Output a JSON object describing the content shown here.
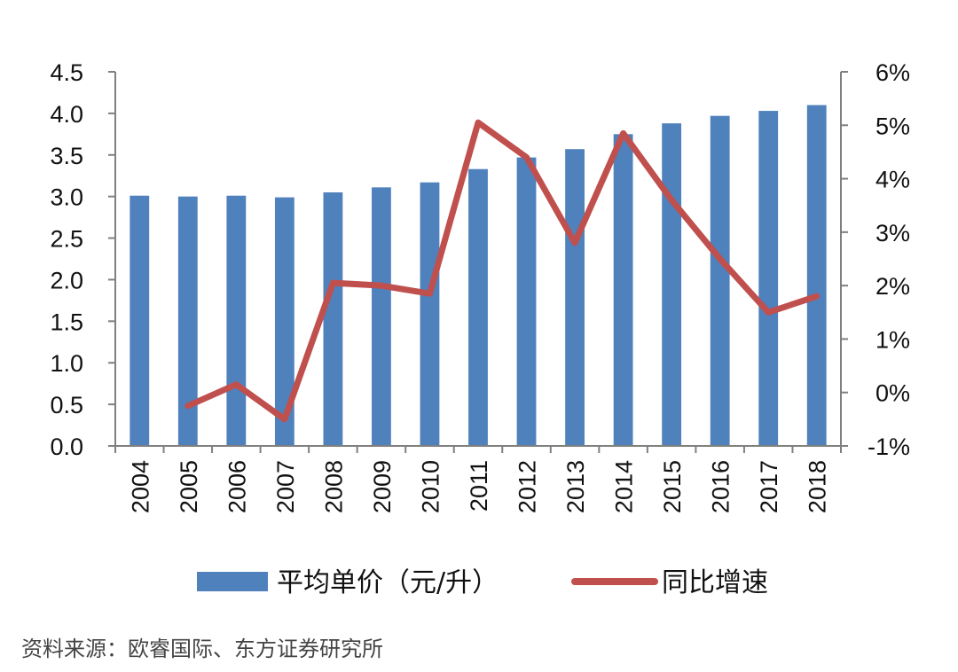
{
  "chart_data": {
    "type": "bar",
    "categories": [
      "2004",
      "2005",
      "2006",
      "2007",
      "2008",
      "2009",
      "2010",
      "2011",
      "2012",
      "2013",
      "2014",
      "2015",
      "2016",
      "2017",
      "2018"
    ],
    "series": [
      {
        "name": "平均单价（元/升）",
        "axis": "left",
        "chart_type": "bar",
        "values": [
          3.01,
          3.0,
          3.01,
          2.99,
          3.05,
          3.11,
          3.17,
          3.33,
          3.47,
          3.57,
          3.75,
          3.88,
          3.97,
          4.03,
          4.1
        ]
      },
      {
        "name": "同比增速",
        "axis": "right",
        "chart_type": "line",
        "unit": "%",
        "values": [
          null,
          -0.25,
          0.15,
          -0.5,
          2.05,
          2.0,
          1.85,
          5.05,
          4.4,
          2.8,
          4.85,
          3.6,
          2.5,
          1.5,
          1.8
        ]
      }
    ],
    "y_left": {
      "ylim": [
        0,
        4.5
      ],
      "ticks": [
        "0.0",
        "0.5",
        "1.0",
        "1.5",
        "2.0",
        "2.5",
        "3.0",
        "3.5",
        "4.0",
        "4.5"
      ]
    },
    "y_right": {
      "ylim": [
        -1,
        6
      ],
      "ticks": [
        "-1%",
        "0%",
        "1%",
        "2%",
        "3%",
        "4%",
        "5%",
        "6%"
      ]
    },
    "grid": false,
    "legend_position": "bottom",
    "colors": {
      "bar": "#4f81bd",
      "line": "#c0504d",
      "axis": "#808080"
    }
  },
  "legend": {
    "bar_label": "平均单价（元/升）",
    "line_label": "同比增速"
  },
  "source_text": "资料来源：欧睿国际、东方证券研究所"
}
